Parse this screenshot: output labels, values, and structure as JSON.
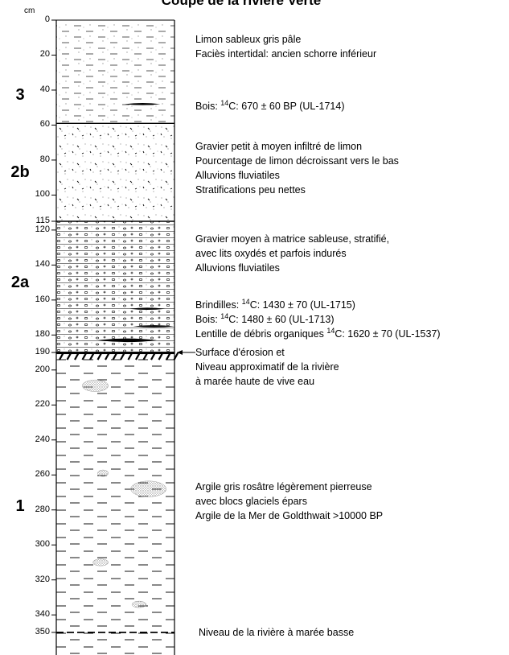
{
  "title": "Coupe de la rivière Verte",
  "axis": {
    "unit": "cm",
    "ticks": [
      0,
      20,
      40,
      60,
      80,
      100,
      115,
      120,
      140,
      160,
      180,
      190,
      200,
      220,
      240,
      260,
      280,
      300,
      320,
      340,
      350
    ],
    "range": [
      0,
      376
    ]
  },
  "layers": [
    {
      "id": "3",
      "label": "3",
      "top_cm": 0,
      "bottom_cm": 59,
      "pattern": "silty-sand"
    },
    {
      "id": "2b",
      "label": "2b",
      "top_cm": 59,
      "bottom_cm": 115,
      "pattern": "gravel-silt"
    },
    {
      "id": "2a",
      "label": "2a",
      "top_cm": 115,
      "bottom_cm": 190,
      "pattern": "stratified-gravel"
    },
    {
      "id": "1",
      "label": "1",
      "top_cm": 190,
      "bottom_cm": 376,
      "pattern": "clay"
    }
  ],
  "descriptions": [
    {
      "id": "d3",
      "depth_cm": 11,
      "lines": [
        "Limon sableux gris pâle",
        "Faciès intertidal: ancien schorre inférieur"
      ]
    },
    {
      "id": "d3-date",
      "depth_cm": 49,
      "lines": [
        {
          "pre": "Bois: ",
          "sup": "14",
          "post": "C: 670 ± 60 BP (UL-1714)"
        }
      ]
    },
    {
      "id": "d2b",
      "depth_cm": 72,
      "lines": [
        "Gravier petit à moyen infiltré de limon",
        "Pourcentage de limon décroissant vers le bas",
        "Alluvions fluviatiles",
        "Stratifications peu nettes"
      ]
    },
    {
      "id": "d2a",
      "depth_cm": 125,
      "lines": [
        "Gravier moyen à matrice sableuse, stratifié,",
        "avec lits oxydés et parfois indurés",
        "Alluvions fluviatiles"
      ]
    },
    {
      "id": "d2a-dates",
      "depth_cm": 163,
      "lines": [
        {
          "pre": "Brindilles: ",
          "sup": "14",
          "post": "C: 1430 ± 70 (UL-1715)"
        },
        {
          "pre": "Bois: ",
          "sup": "14",
          "post": "C: 1480 ± 60 (UL-1713)"
        },
        {
          "pre": "Lentille de débris organiques ",
          "sup": "14",
          "post": "C: 1620 ± 70 (UL-1537)"
        }
      ]
    },
    {
      "id": "d-erosion",
      "depth_cm": 190,
      "lines": [
        "Surface d'érosion et",
        "Niveau approximatif de la rivière",
        "à marée haute de vive eau"
      ]
    },
    {
      "id": "d1",
      "depth_cm": 267,
      "lines": [
        "Argile gris rosâtre légèrement pierreuse",
        "avec blocs glaciels épars",
        "Argile de la Mer de Goldthwait >10000 BP"
      ]
    },
    {
      "id": "d-low",
      "depth_cm": 350,
      "lines": [
        "Niveau de la rivière à marée basse"
      ]
    }
  ],
  "samples": [
    {
      "id": "UL-1714",
      "depth_cm": 48,
      "x0": 0.58,
      "x1": 0.88
    },
    {
      "id": "UL-1715",
      "depth_cm": 165,
      "x0": 0.62,
      "x1": 0.92
    },
    {
      "id": "UL-1713",
      "depth_cm": 175,
      "x0": 0.65,
      "x1": 1.0
    },
    {
      "id": "UL-1537",
      "depth_cm": 183,
      "x0": 0.35,
      "x1": 0.85
    }
  ],
  "pebbles": [
    {
      "depth_cm": 209,
      "x": 0.22,
      "w": 0.22
    },
    {
      "depth_cm": 259,
      "x": 0.35,
      "w": 0.09
    },
    {
      "depth_cm": 268,
      "x": 0.63,
      "w": 0.3
    },
    {
      "depth_cm": 310,
      "x": 0.31,
      "w": 0.13
    },
    {
      "depth_cm": 334,
      "x": 0.64,
      "w": 0.12
    }
  ],
  "colors": {
    "ink": "#000000",
    "stipple": "#8a8a8a",
    "paper": "#ffffff"
  }
}
